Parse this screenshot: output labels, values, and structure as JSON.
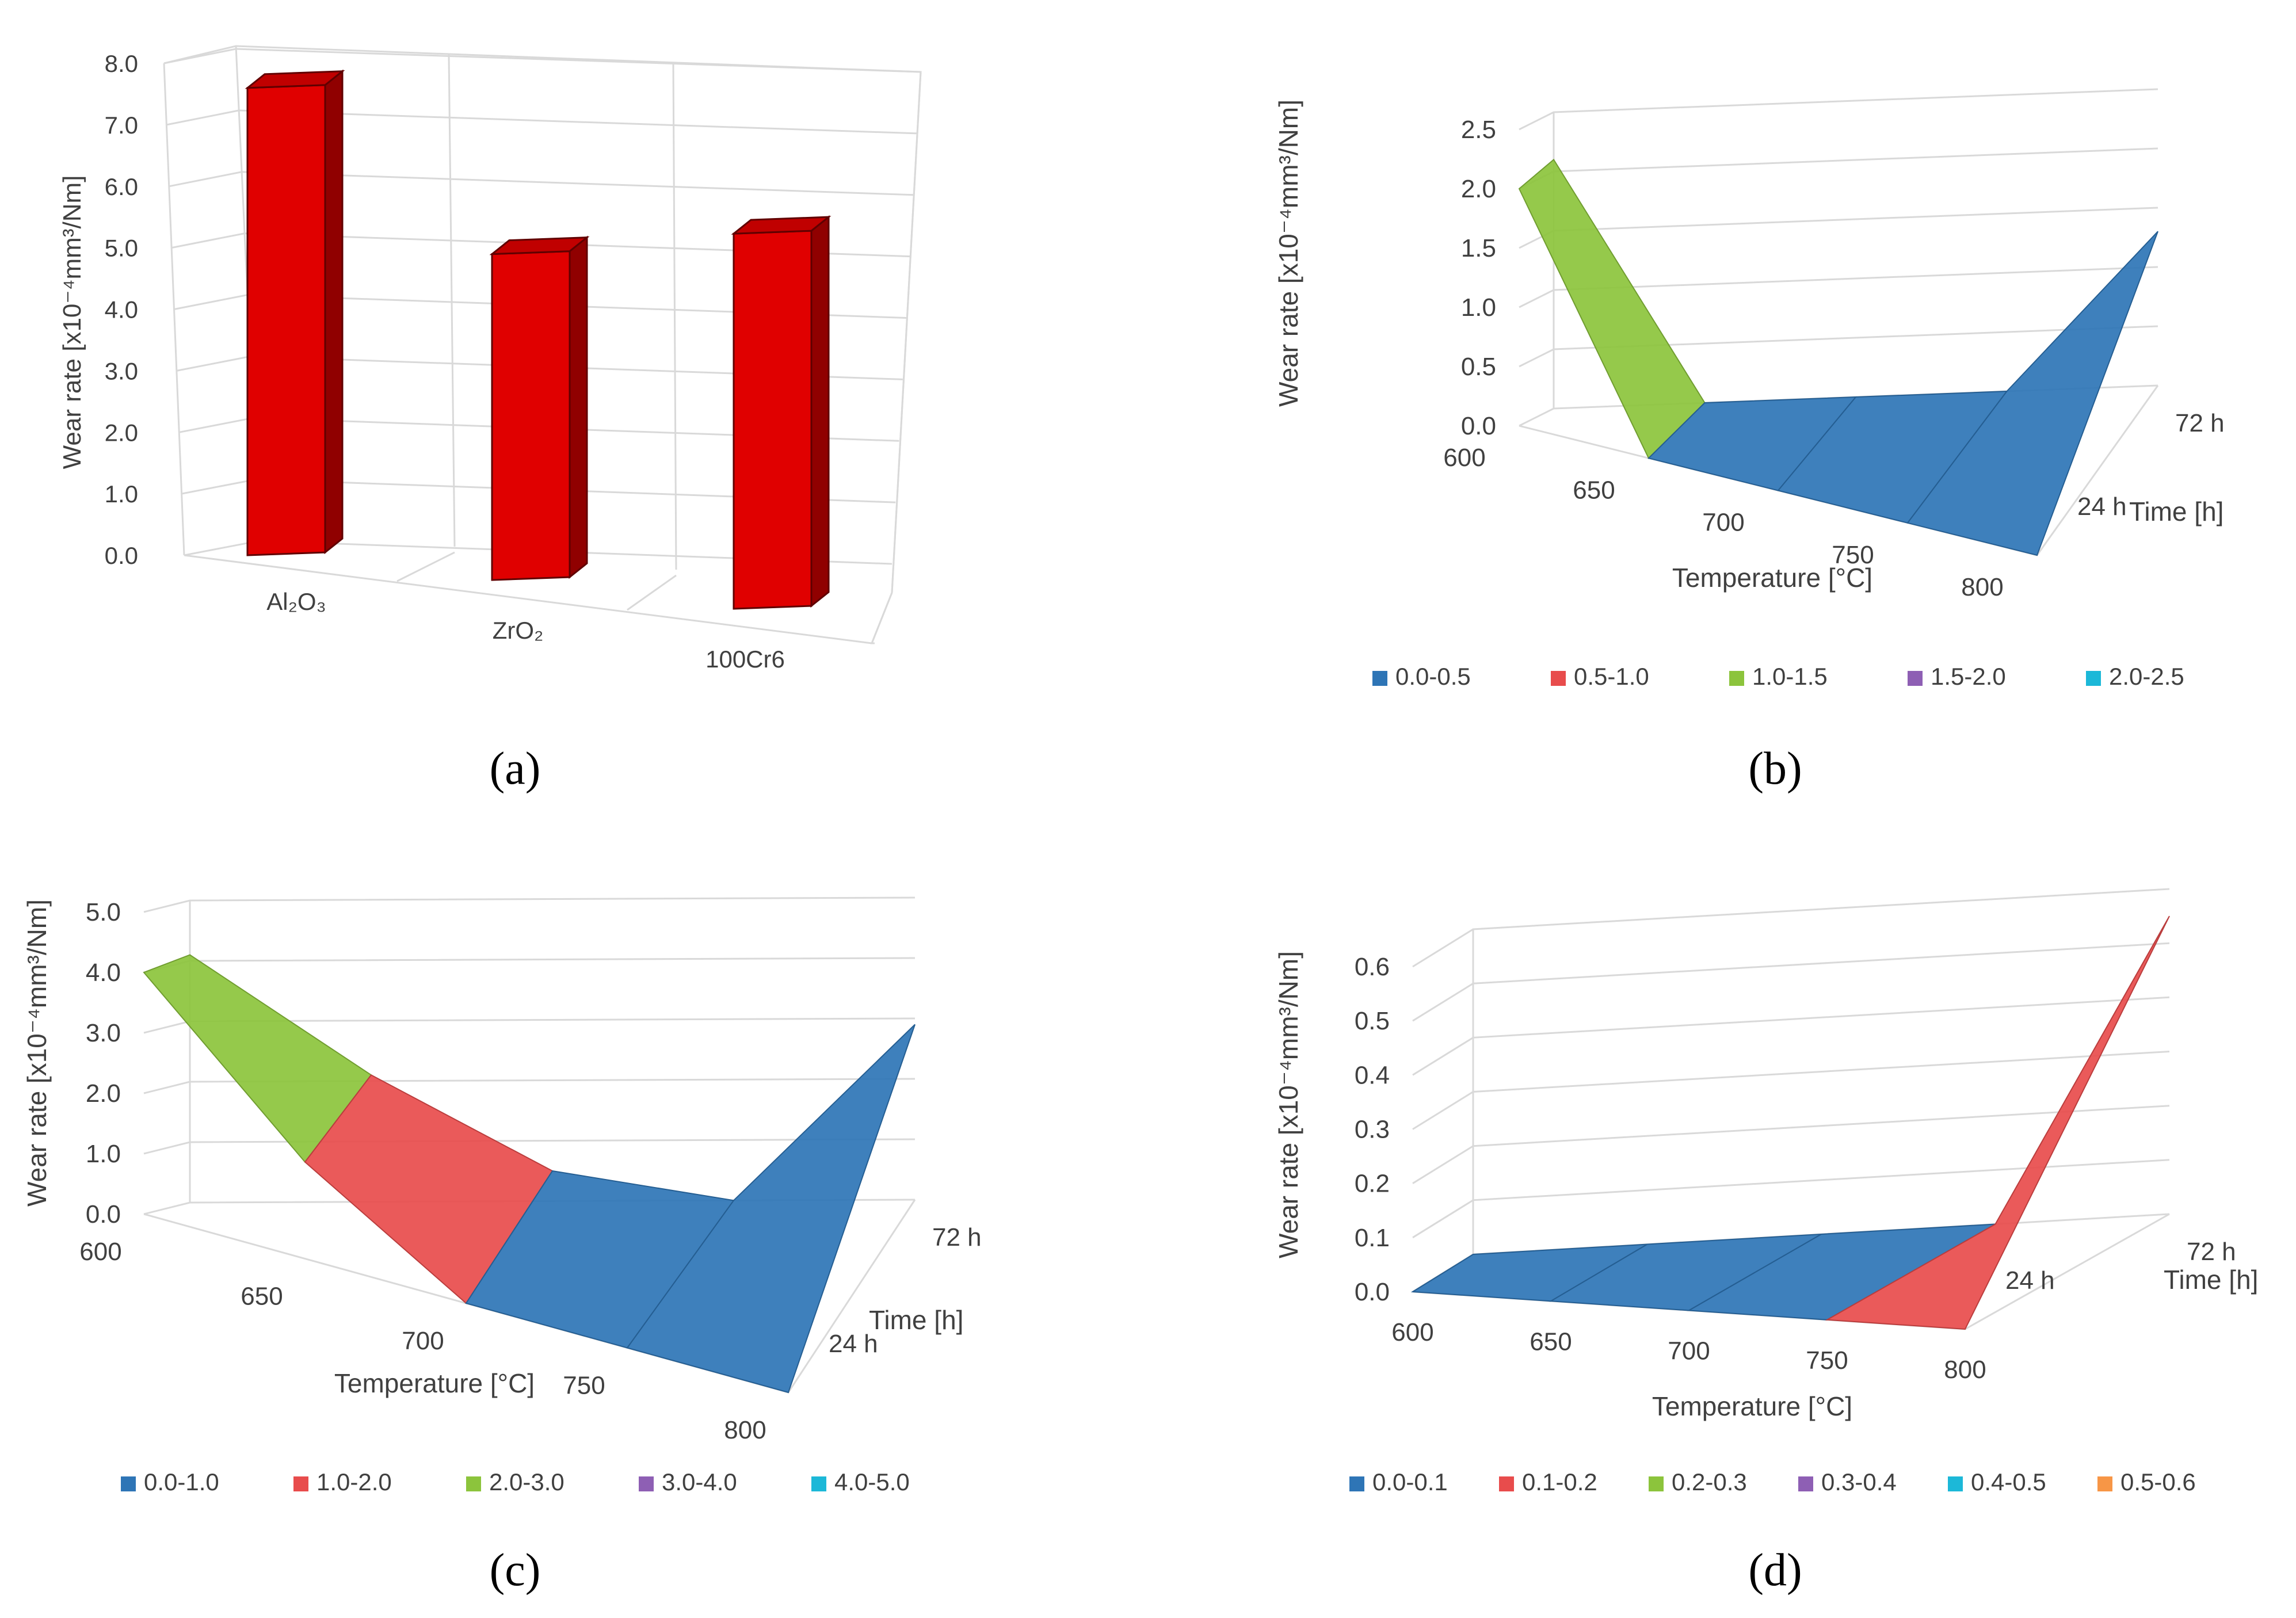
{
  "chart_data": [
    {
      "id": "a",
      "type": "bar",
      "caption": "(a)",
      "ylabel": "Wear rate [x10⁻⁴mm³/Nm]",
      "ylim": [
        0,
        8
      ],
      "yticks": [
        "0.0",
        "1.0",
        "2.0",
        "3.0",
        "4.0",
        "5.0",
        "6.0",
        "7.0",
        "8.0"
      ],
      "categories": [
        "Al₂O₃",
        "ZrO₂",
        "100Cr6"
      ],
      "values": [
        7.6,
        5.3,
        6.1
      ],
      "color": "#e00000",
      "side_color": "#900000",
      "top_color": "#c00000"
    },
    {
      "id": "b",
      "type": "area",
      "caption": "(b)",
      "ylabel": "Wear rate [x10⁻⁴mm³/Nm]",
      "xlabel": "Temperature [°C]",
      "zlabel": "Time [h]",
      "x": [
        "600",
        "650",
        "700",
        "750",
        "800"
      ],
      "z": [
        "24 h",
        "72 h"
      ],
      "ylim": [
        0,
        2.5
      ],
      "yticks": [
        "0.0",
        "0.5",
        "1.0",
        "1.5",
        "2.0",
        "2.5"
      ],
      "series": [
        {
          "name": "24 h",
          "values": [
            2.0,
            0.0,
            0.0,
            0.0,
            0.0
          ]
        },
        {
          "name": "72 h",
          "values": [
            2.1,
            0.0,
            0.0,
            0.0,
            1.3
          ]
        }
      ],
      "legend": [
        {
          "label": "0.0-0.5",
          "color": "#2e75b6"
        },
        {
          "label": "0.5-1.0",
          "color": "#e84c4c"
        },
        {
          "label": "1.0-1.5",
          "color": "#8cc43c"
        },
        {
          "label": "1.5-2.0",
          "color": "#8e5fb4"
        },
        {
          "label": "2.0-2.5",
          "color": "#1cb8d8"
        }
      ]
    },
    {
      "id": "c",
      "type": "area",
      "caption": "(c)",
      "ylabel": "Wear rate [x10⁻⁴mm³/Nm]",
      "xlabel": "Temperature [°C]",
      "zlabel": "Time [h]",
      "x": [
        "600",
        "650",
        "700",
        "750",
        "800"
      ],
      "z": [
        "24 h",
        "72 h"
      ],
      "ylim": [
        0,
        5
      ],
      "yticks": [
        "0.0",
        "1.0",
        "2.0",
        "3.0",
        "4.0",
        "5.0"
      ],
      "series": [
        {
          "name": "24 h",
          "values": [
            4.0,
            1.6,
            0.0,
            0.0,
            0.0
          ]
        },
        {
          "name": "72 h",
          "values": [
            4.1,
            2.1,
            0.5,
            0.0,
            2.9
          ]
        }
      ],
      "legend": [
        {
          "label": "0.0-1.0",
          "color": "#2e75b6"
        },
        {
          "label": "1.0-2.0",
          "color": "#e84c4c"
        },
        {
          "label": "2.0-3.0",
          "color": "#8cc43c"
        },
        {
          "label": "3.0-4.0",
          "color": "#8e5fb4"
        },
        {
          "label": "4.0-5.0",
          "color": "#1cb8d8"
        }
      ]
    },
    {
      "id": "d",
      "type": "area",
      "caption": "(d)",
      "ylabel": "Wear rate [x10⁻⁴mm³/Nm]",
      "xlabel": "Temperature [°C]",
      "zlabel": "Time [h]",
      "x": [
        "600",
        "650",
        "700",
        "750",
        "800"
      ],
      "z": [
        "24 h",
        "72 h"
      ],
      "ylim": [
        0,
        0.6
      ],
      "yticks": [
        "0.0",
        "0.1",
        "0.2",
        "0.3",
        "0.4",
        "0.5",
        "0.6"
      ],
      "series": [
        {
          "name": "24 h",
          "values": [
            0.0,
            0.0,
            0.0,
            0.0,
            0.0
          ]
        },
        {
          "name": "72 h",
          "values": [
            0.0,
            0.0,
            0.0,
            0.0,
            0.55
          ]
        }
      ],
      "legend": [
        {
          "label": "0.0-0.1",
          "color": "#2e75b6"
        },
        {
          "label": "0.1-0.2",
          "color": "#e84c4c"
        },
        {
          "label": "0.2-0.3",
          "color": "#8cc43c"
        },
        {
          "label": "0.3-0.4",
          "color": "#8e5fb4"
        },
        {
          "label": "0.4-0.5",
          "color": "#1cb8d8"
        },
        {
          "label": "0.5-0.6",
          "color": "#f79646"
        }
      ]
    }
  ]
}
